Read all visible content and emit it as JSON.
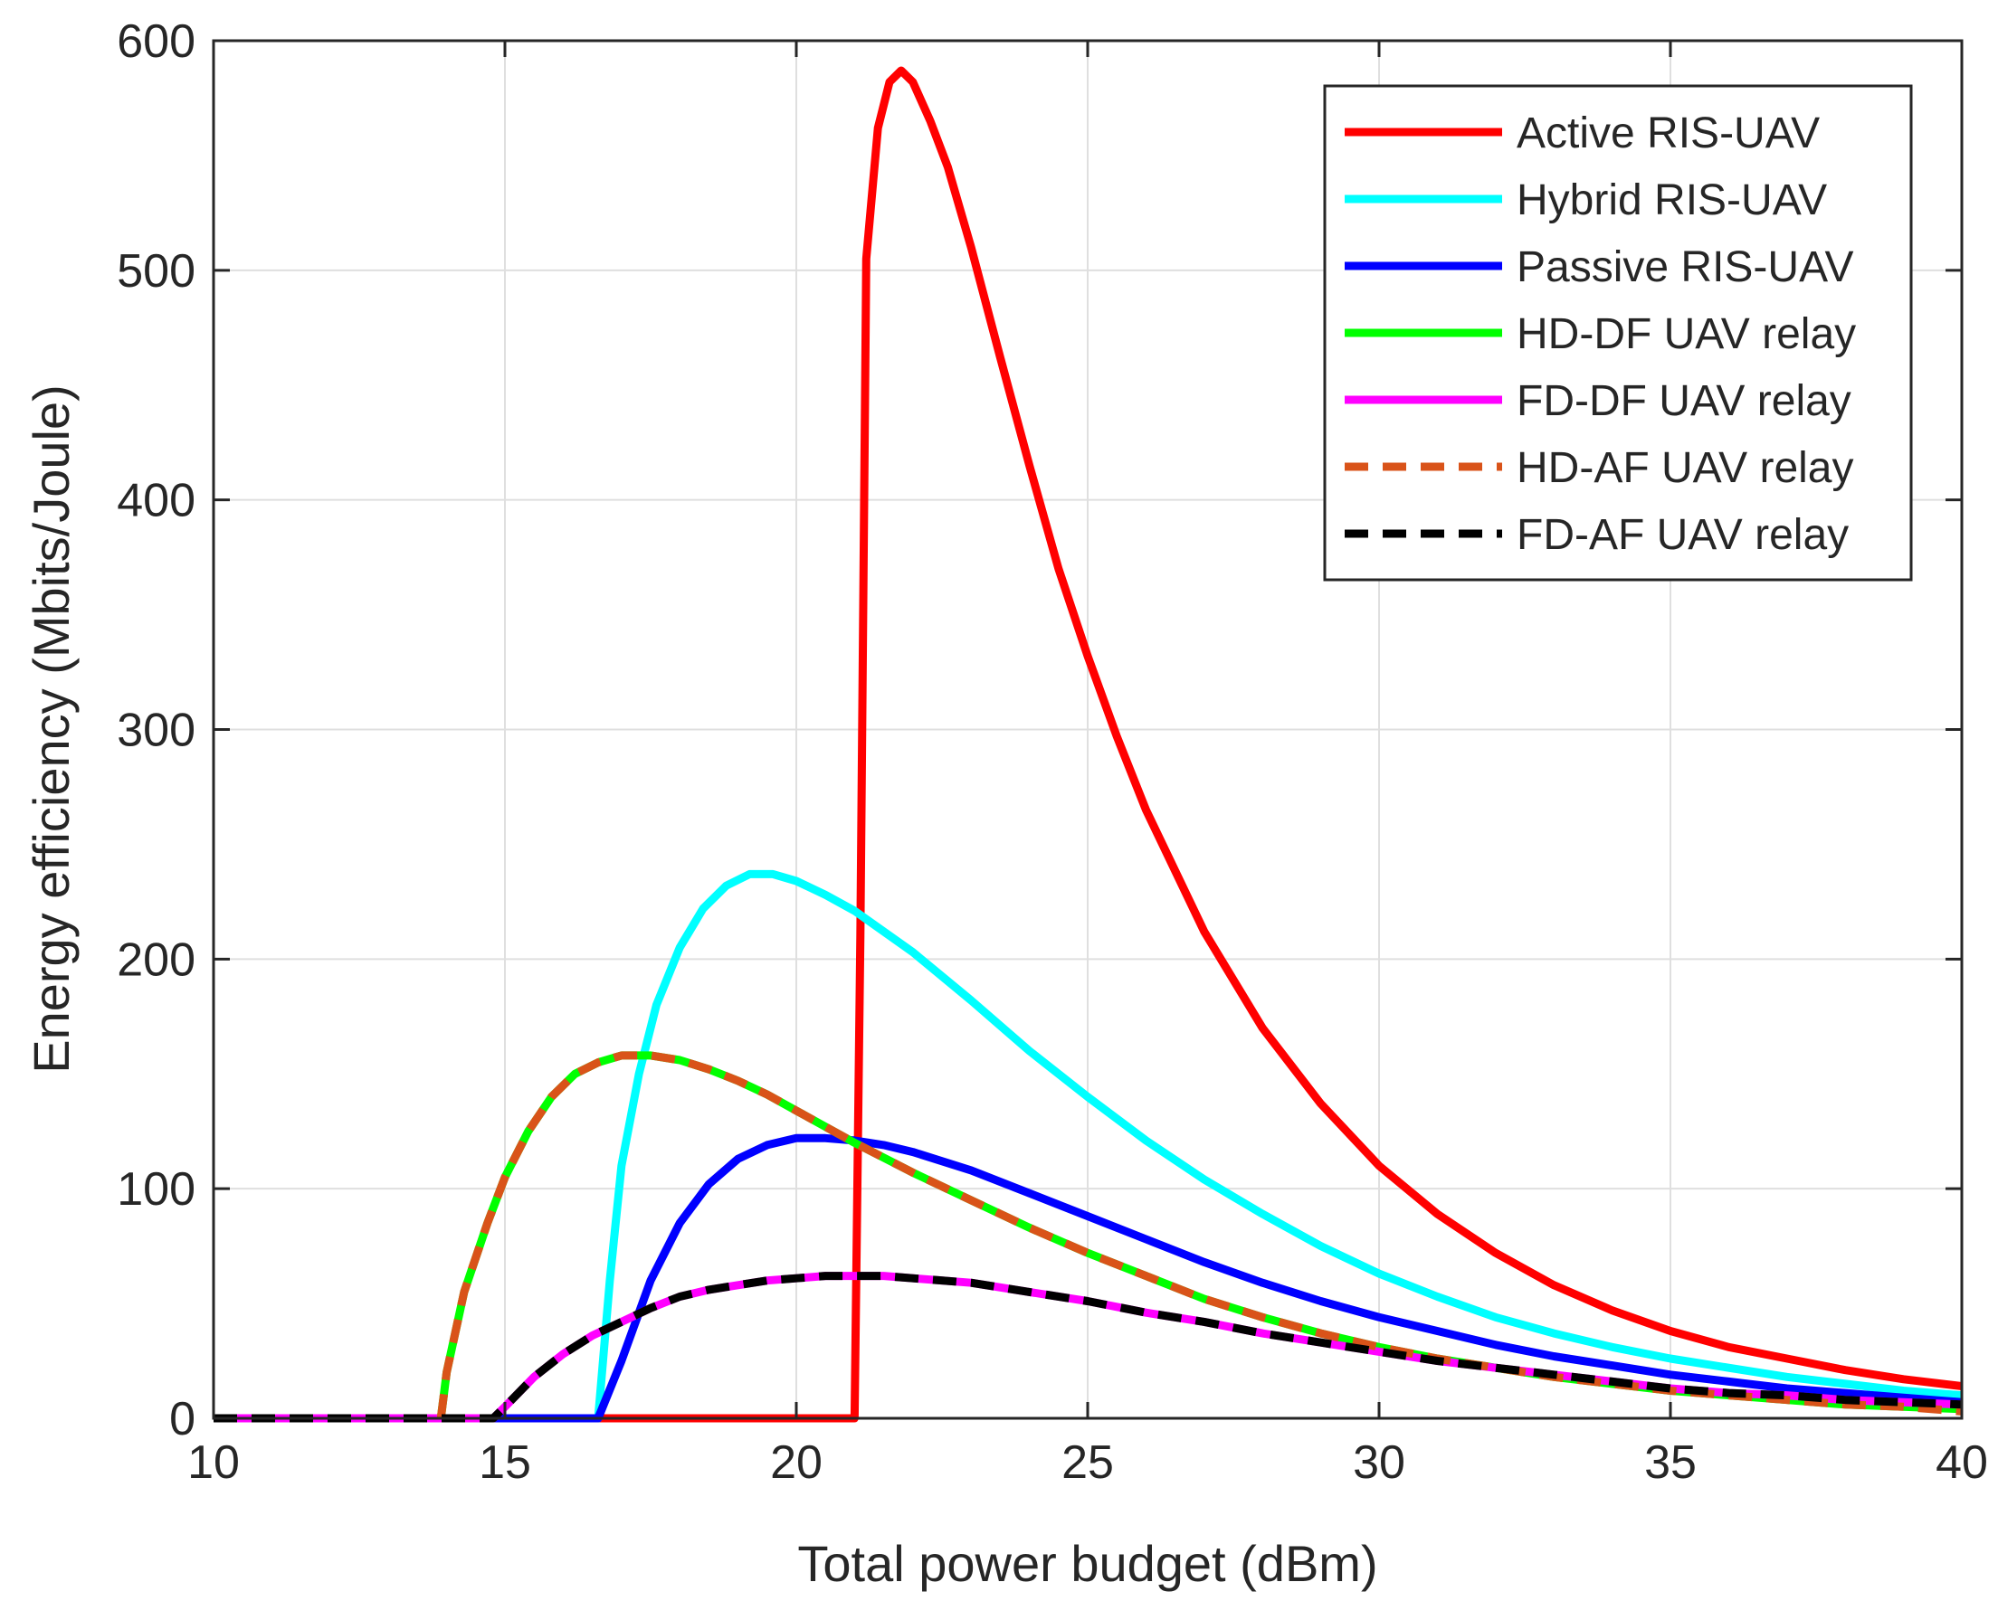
{
  "chart_data": {
    "type": "line",
    "title": "",
    "xlabel": "Total power budget (dBm)",
    "ylabel": "Energy efficiency (Mbits/Joule)",
    "xlim": [
      10,
      40
    ],
    "ylim": [
      0,
      600
    ],
    "xticks": [
      10,
      15,
      20,
      25,
      30,
      35,
      40
    ],
    "yticks": [
      0,
      100,
      200,
      300,
      400,
      500,
      600
    ],
    "grid": true,
    "legend_position": "top-right",
    "series": [
      {
        "name": "Active RIS-UAV",
        "color": "#ff0000",
        "dash": "solid",
        "x": [
          10,
          21.0,
          21.1,
          21.2,
          21.4,
          21.6,
          21.8,
          22.0,
          22.3,
          22.6,
          23.0,
          23.5,
          24.0,
          24.5,
          25.0,
          25.5,
          26.0,
          27.0,
          28.0,
          29.0,
          30.0,
          31.0,
          32.0,
          33.0,
          34.0,
          35.0,
          36.0,
          37.0,
          38.0,
          39.0,
          40.0
        ],
        "y": [
          0,
          0,
          210,
          505,
          562,
          582,
          587,
          582,
          565,
          545,
          510,
          462,
          415,
          370,
          332,
          297,
          265,
          212,
          170,
          137,
          110,
          89,
          72,
          58,
          47,
          38,
          31,
          26,
          21,
          17,
          14
        ]
      },
      {
        "name": "Hybrid RIS-UAV",
        "color": "#00ffff",
        "dash": "solid",
        "x": [
          10,
          16.6,
          16.8,
          17.0,
          17.3,
          17.6,
          18.0,
          18.4,
          18.8,
          19.2,
          19.6,
          20.0,
          20.5,
          21.0,
          22.0,
          23.0,
          24.0,
          25.0,
          26.0,
          27.0,
          28.0,
          29.0,
          30.0,
          31.0,
          32.0,
          33.0,
          34.0,
          35.0,
          36.0,
          37.0,
          38.0,
          39.0,
          40.0
        ],
        "y": [
          0,
          0,
          60,
          110,
          150,
          180,
          205,
          222,
          232,
          237,
          237,
          234,
          228,
          221,
          203,
          182,
          160,
          140,
          121,
          104,
          89,
          75,
          63,
          53,
          44,
          37,
          31,
          26,
          22,
          18,
          15,
          12,
          10
        ]
      },
      {
        "name": "Passive RIS-UAV",
        "color": "#0000ff",
        "dash": "solid",
        "x": [
          10,
          16.6,
          17.0,
          17.5,
          18.0,
          18.5,
          19.0,
          19.5,
          20.0,
          20.5,
          21.0,
          21.5,
          22.0,
          23.0,
          24.0,
          25.0,
          26.0,
          27.0,
          28.0,
          29.0,
          30.0,
          31.0,
          32.0,
          33.0,
          34.0,
          35.0,
          36.0,
          37.0,
          38.0,
          39.0,
          40.0
        ],
        "y": [
          0,
          0,
          25,
          60,
          85,
          102,
          113,
          119,
          122,
          122,
          121,
          119,
          116,
          108,
          98,
          88,
          78,
          68,
          59,
          51,
          44,
          38,
          32,
          27,
          23,
          19,
          16,
          13,
          11,
          9,
          7
        ]
      },
      {
        "name": "HD-DF UAV relay",
        "color": "#00ff00",
        "dash": "solid",
        "x": [
          10,
          13.9,
          14.0,
          14.3,
          14.7,
          15.0,
          15.4,
          15.8,
          16.2,
          16.6,
          17.0,
          17.5,
          18.0,
          18.5,
          19.0,
          19.5,
          20.0,
          21.0,
          22.0,
          23.0,
          24.0,
          25.0,
          26.0,
          27.0,
          28.0,
          29.0,
          30.0,
          31.0,
          32.0,
          33.0,
          34.0,
          35.0,
          36.0,
          37.0,
          38.0,
          39.0,
          40.0
        ],
        "y": [
          0,
          0,
          20,
          55,
          85,
          105,
          125,
          140,
          150,
          155,
          158,
          158,
          156,
          152,
          147,
          141,
          134,
          120,
          107,
          95,
          83,
          72,
          62,
          52,
          44,
          37,
          31,
          26,
          22,
          18,
          15,
          12,
          10,
          8,
          6,
          5,
          4
        ]
      },
      {
        "name": "FD-DF UAV relay",
        "color": "#ff00ff",
        "dash": "solid",
        "x": [
          10,
          14.8,
          15.0,
          15.5,
          16.0,
          16.5,
          17.0,
          17.5,
          18.0,
          18.5,
          19.0,
          19.5,
          20.0,
          20.5,
          21.0,
          21.5,
          22.0,
          23.0,
          24.0,
          25.0,
          26.0,
          27.0,
          28.0,
          29.0,
          30.0,
          31.0,
          32.0,
          33.0,
          34.0,
          35.0,
          36.0,
          37.0,
          38.0,
          39.0,
          40.0
        ],
        "y": [
          0,
          0,
          5,
          18,
          28,
          36,
          42,
          48,
          53,
          56,
          58,
          60,
          61,
          62,
          62,
          62,
          61,
          59,
          55,
          51,
          46,
          42,
          37,
          33,
          29,
          25,
          22,
          19,
          16,
          13,
          11,
          10,
          8,
          7,
          6
        ]
      },
      {
        "name": "HD-AF UAV relay",
        "color": "#d95319",
        "dash": "dashed",
        "x": [
          10,
          13.9,
          14.0,
          14.3,
          14.7,
          15.0,
          15.4,
          15.8,
          16.2,
          16.6,
          17.0,
          17.5,
          18.0,
          18.5,
          19.0,
          19.5,
          20.0,
          21.0,
          22.0,
          23.0,
          24.0,
          25.0,
          26.0,
          27.0,
          28.0,
          29.0,
          30.0,
          31.0,
          32.0,
          33.0,
          34.0,
          35.0,
          36.0,
          37.0,
          38.0,
          39.0,
          40.0
        ],
        "y": [
          0,
          0,
          20,
          55,
          85,
          105,
          125,
          140,
          150,
          155,
          158,
          158,
          156,
          152,
          147,
          141,
          134,
          120,
          107,
          95,
          83,
          72,
          62,
          52,
          44,
          37,
          31,
          26,
          22,
          18,
          15,
          12,
          10,
          8,
          6,
          5,
          3
        ]
      },
      {
        "name": "FD-AF UAV relay",
        "color": "#000000",
        "dash": "dashed",
        "x": [
          10,
          14.8,
          15.0,
          15.5,
          16.0,
          16.5,
          17.0,
          17.5,
          18.0,
          18.5,
          19.0,
          19.5,
          20.0,
          20.5,
          21.0,
          21.5,
          22.0,
          23.0,
          24.0,
          25.0,
          26.0,
          27.0,
          28.0,
          29.0,
          30.0,
          31.0,
          32.0,
          33.0,
          34.0,
          35.0,
          36.0,
          37.0,
          38.0,
          39.0,
          40.0
        ],
        "y": [
          0,
          0,
          5,
          18,
          28,
          36,
          42,
          48,
          53,
          56,
          58,
          60,
          61,
          62,
          62,
          62,
          61,
          59,
          55,
          51,
          46,
          42,
          37,
          33,
          29,
          25,
          22,
          19,
          16,
          13,
          11,
          10,
          8,
          7,
          6
        ]
      }
    ]
  }
}
